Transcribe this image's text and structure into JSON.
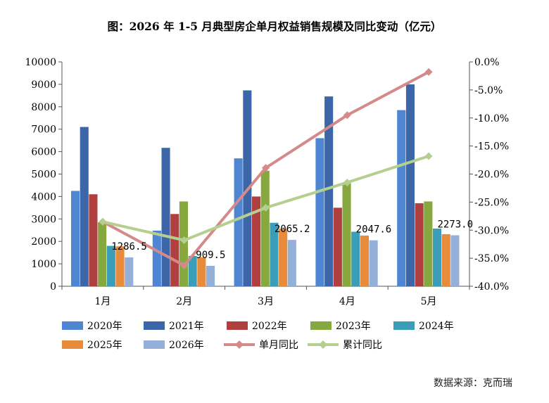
{
  "title": "图：2026 年 1-5 月典型房企单月权益销售规模及同比变动（亿元）",
  "source": "数据来源：克而瑞",
  "chart_data": {
    "type": "bar",
    "categories": [
      "1月",
      "2月",
      "3月",
      "4月",
      "5月"
    ],
    "series": [
      {
        "name": "2020年",
        "color": "#4f86d3",
        "values": [
          4250,
          2480,
          5700,
          6600,
          7850
        ]
      },
      {
        "name": "2021年",
        "color": "#3d66a8",
        "values": [
          7100,
          6170,
          8730,
          8460,
          9000
        ]
      },
      {
        "name": "2022年",
        "color": "#b0403f",
        "values": [
          4100,
          3220,
          4000,
          3500,
          3700
        ]
      },
      {
        "name": "2023年",
        "color": "#86a83f",
        "values": [
          2850,
          3780,
          5150,
          4600,
          3780
        ]
      },
      {
        "name": "2024年",
        "color": "#3c9db8",
        "values": [
          1800,
          1350,
          2830,
          2430,
          2570
        ]
      },
      {
        "name": "2025年",
        "color": "#e88b3a",
        "values": [
          1780,
          1290,
          2560,
          2260,
          2320
        ]
      },
      {
        "name": "2026年",
        "color": "#94afd8",
        "values": [
          1286.5,
          909.5,
          2065.2,
          2047.6,
          2273.0
        ]
      }
    ],
    "line_series": [
      {
        "name": "单月同比",
        "color": "#d48a89",
        "marker": "diamond",
        "values": [
          -28.5,
          -36.3,
          -18.9,
          -9.5,
          -1.8
        ]
      },
      {
        "name": "累计同比",
        "color": "#b5cf8f",
        "marker": "diamond",
        "values": [
          -28.5,
          -31.8,
          -26.0,
          -21.5,
          -16.8
        ]
      }
    ],
    "data_labels": [
      "1286.5",
      "909.5",
      "2065.2",
      "2047.6",
      "2273.0"
    ],
    "y_left": {
      "min": 0,
      "max": 10000,
      "ticks": [
        "0",
        "1000",
        "2000",
        "3000",
        "4000",
        "5000",
        "6000",
        "7000",
        "8000",
        "9000",
        "10000"
      ]
    },
    "y_right": {
      "min": -40,
      "max": 0,
      "ticks": [
        "-40.0%",
        "-35.0%",
        "-30.0%",
        "-25.0%",
        "-20.0%",
        "-15.0%",
        "-10.0%",
        "-5.0%",
        "0.0%"
      ]
    },
    "legend": {
      "placement": "bottom"
    },
    "grid": false
  }
}
